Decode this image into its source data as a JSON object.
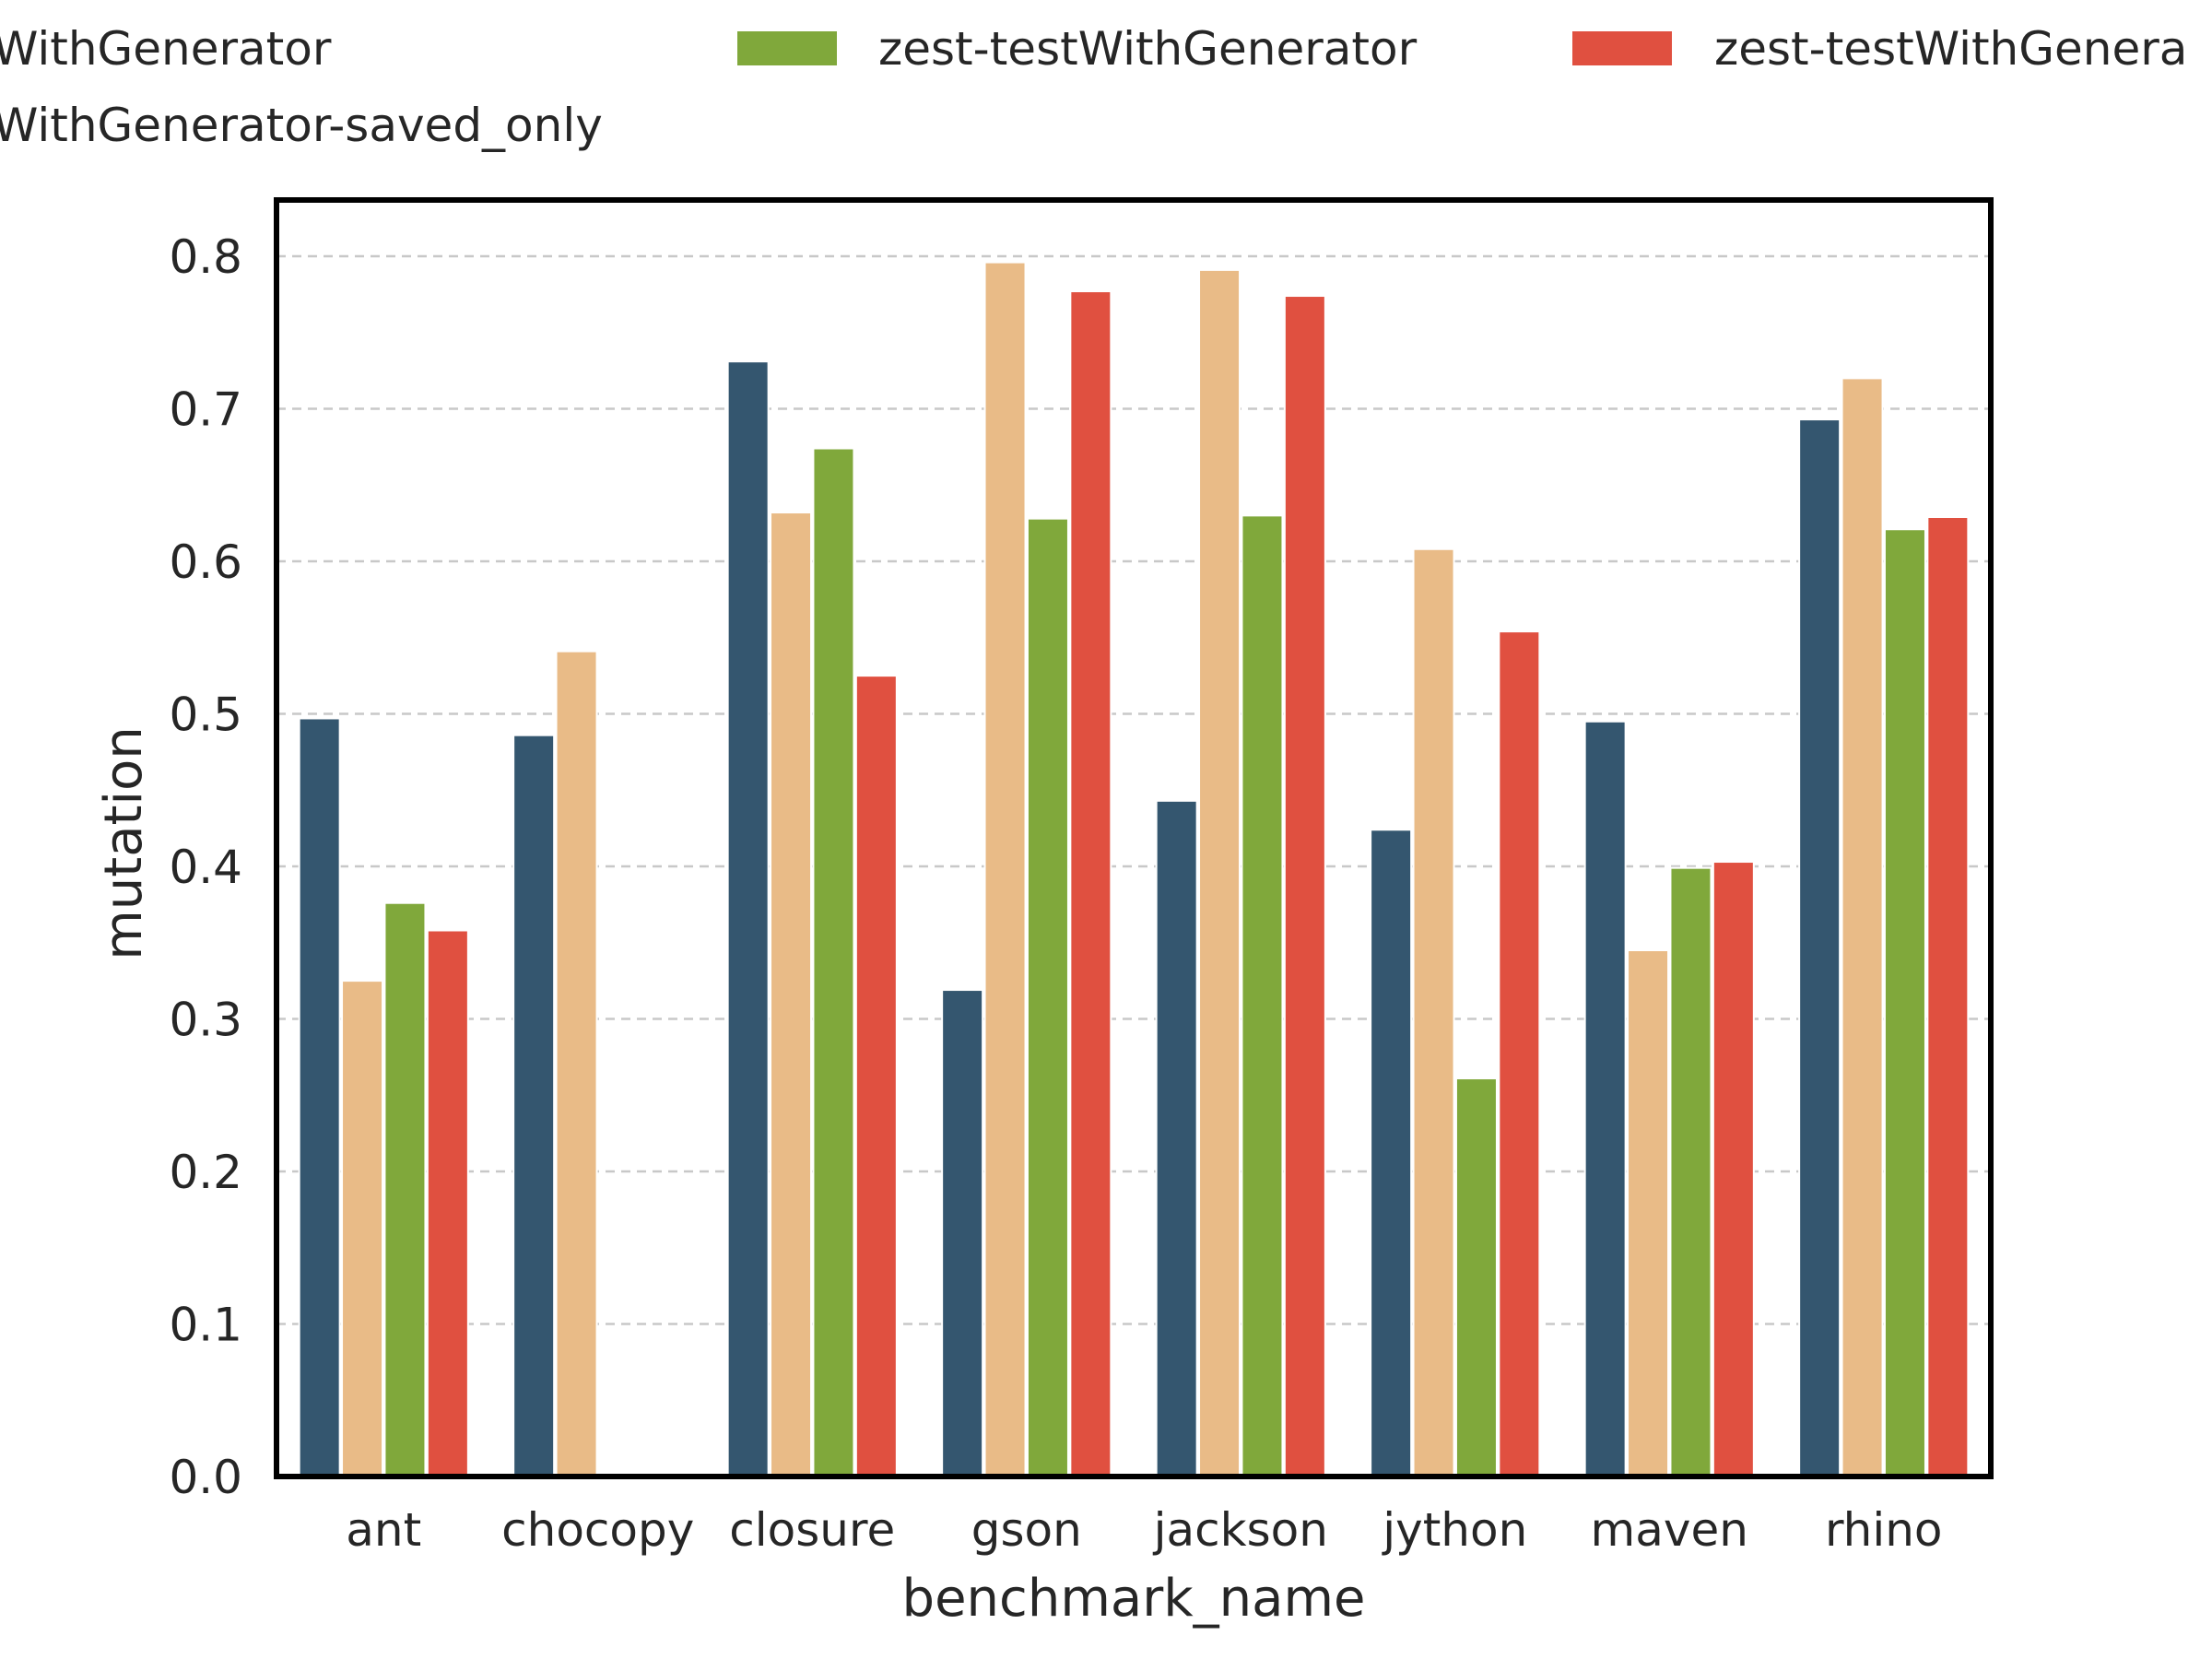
{
  "chart_data": {
    "type": "bar",
    "categories": [
      "ant",
      "chocopy",
      "closure",
      "gson",
      "jackson",
      "jython",
      "maven",
      "rhino"
    ],
    "xlabel": "benchmark_name",
    "ylabel": "mutation",
    "ylim": [
      0,
      0.82
    ],
    "yticks": [
      "0.0",
      "0.1",
      "0.2",
      "0.3",
      "0.4",
      "0.5",
      "0.6",
      "0.7",
      "0.8"
    ],
    "grid": "horizontal dashed",
    "legend_placement": "top, above plot (cropped at left and right)",
    "series": [
      {
        "name": "WithGenerator",
        "color": "#34566f",
        "values": [
          0.497,
          0.486,
          0.731,
          0.319,
          0.443,
          0.424,
          0.495,
          0.693
        ]
      },
      {
        "name": "WithGenerator-saved_only",
        "color": "#e9bb87",
        "values": [
          0.325,
          0.541,
          0.632,
          0.796,
          0.791,
          0.608,
          0.345,
          0.72
        ]
      },
      {
        "name": "zest-testWithGenerator",
        "color": "#80a83b",
        "values": [
          0.376,
          null,
          0.674,
          0.628,
          0.63,
          0.261,
          0.399,
          0.621
        ]
      },
      {
        "name": "zest-testWithGenera",
        "color": "#e05040",
        "values": [
          0.358,
          null,
          0.525,
          0.777,
          0.774,
          0.554,
          0.403,
          0.629
        ]
      }
    ]
  }
}
